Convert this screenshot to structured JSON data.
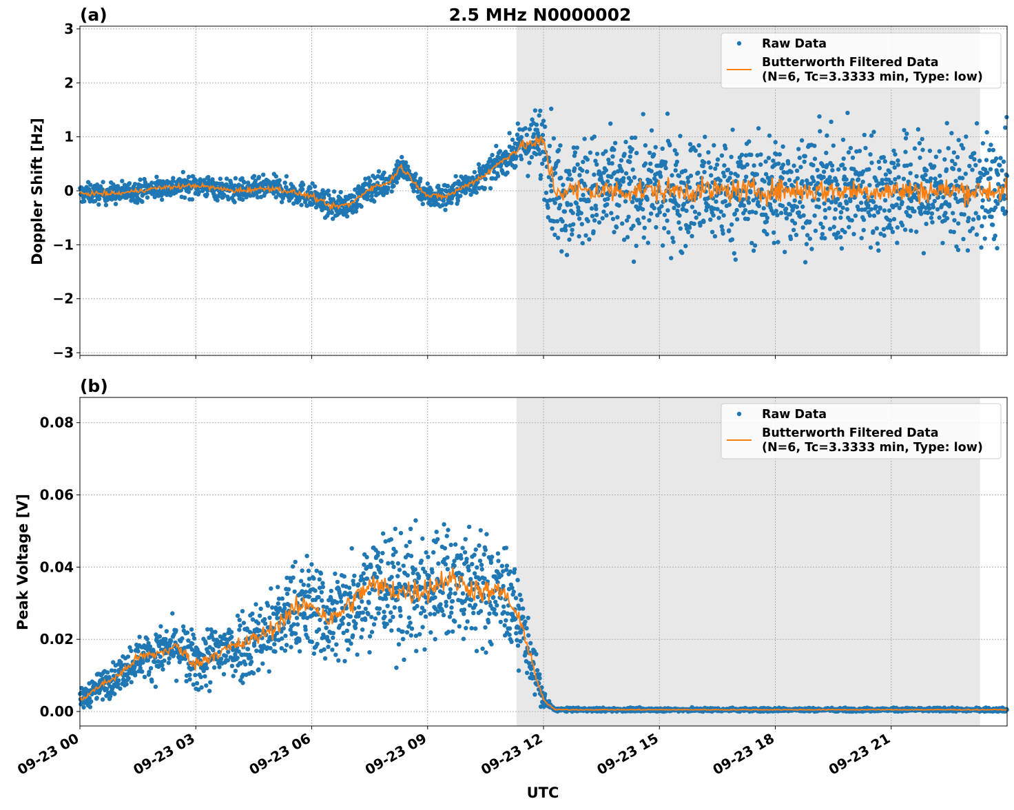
{
  "title": "2.5 MHz N0000002",
  "xlabel": "UTC",
  "x_tick_labels": [
    "09-23 00",
    "09-23 03",
    "09-23 06",
    "09-23 09",
    "09-23 12",
    "09-23 15",
    "09-23 18",
    "09-23 21"
  ],
  "legend": {
    "raw": "Raw Data",
    "filtered_line1": "Butterworth Filtered Data",
    "filtered_line2": "(N=6, Tc=3.3333 min, Type: low)"
  },
  "colors": {
    "raw": "#1f77b4",
    "filtered": "#ff7f0e",
    "shade": "#e8e8e8",
    "grid": "#b0b0b0"
  },
  "chart_data": [
    {
      "type": "scatter",
      "panel_label": "(a)",
      "ylabel": "Doppler Shift [Hz]",
      "ylim": [
        -3.05,
        3.05
      ],
      "y_ticks": [
        -3,
        -2,
        -1,
        0,
        1,
        2,
        3
      ],
      "y_tick_labels": [
        "−3",
        "−2",
        "−1",
        "0",
        "1",
        "2",
        "3"
      ],
      "xlim_hours": [
        0,
        24
      ],
      "x_ticks_hours": [
        0,
        3,
        6,
        9,
        12,
        15,
        18,
        21
      ],
      "shaded_region_hours": [
        11.3,
        23.3
      ],
      "grid": true,
      "legend_position": "top-right",
      "series": [
        {
          "name": "Raw Data",
          "style": "dots",
          "center_hours": [
            0,
            1,
            2,
            3,
            4,
            5,
            6,
            6.5,
            7,
            7.5,
            8,
            8.3,
            9,
            9.5,
            10,
            10.5,
            11,
            11.5,
            12,
            12.3,
            15,
            18,
            21,
            24
          ],
          "center_values": [
            -0.05,
            -0.05,
            0.05,
            0.1,
            0.0,
            0.05,
            -0.1,
            -0.3,
            -0.25,
            0.05,
            0.15,
            0.45,
            -0.1,
            -0.1,
            0.1,
            0.3,
            0.6,
            0.85,
            0.9,
            0.0,
            0.0,
            0.0,
            0.0,
            0.0
          ],
          "spread_hours": [
            0,
            11,
            11.7,
            12.2,
            24
          ],
          "spread_values": [
            0.18,
            0.25,
            0.5,
            1.0,
            1.0
          ]
        },
        {
          "name": "Butterworth Filtered Data (N=6, Tc=3.3333 min, Type: low)",
          "style": "line",
          "x_hours": [
            0,
            1,
            2,
            3,
            4,
            5,
            6,
            6.5,
            7,
            7.5,
            8,
            8.3,
            9,
            9.5,
            10,
            10.5,
            11,
            11.5,
            12,
            12.3,
            15,
            18,
            21,
            24
          ],
          "y": [
            -0.05,
            -0.05,
            0.05,
            0.1,
            0.0,
            0.05,
            -0.1,
            -0.3,
            -0.25,
            0.05,
            0.15,
            0.45,
            -0.1,
            -0.1,
            0.1,
            0.3,
            0.6,
            0.85,
            0.9,
            0.0,
            0.0,
            0.0,
            0.0,
            0.0
          ]
        }
      ]
    },
    {
      "type": "scatter",
      "panel_label": "(b)",
      "ylabel": "Peak Voltage [V]",
      "ylim": [
        -0.004,
        0.087
      ],
      "y_ticks": [
        0.0,
        0.02,
        0.04,
        0.06,
        0.08
      ],
      "y_tick_labels": [
        "0.00",
        "0.02",
        "0.04",
        "0.06",
        "0.08"
      ],
      "xlim_hours": [
        0,
        24
      ],
      "x_ticks_hours": [
        0,
        3,
        6,
        9,
        12,
        15,
        18,
        21
      ],
      "shaded_region_hours": [
        11.3,
        23.3
      ],
      "grid": true,
      "legend_position": "top-right",
      "series": [
        {
          "name": "Raw Data",
          "style": "dots",
          "center_hours": [
            0,
            0.5,
            1,
            1.5,
            2,
            2.5,
            3,
            3.5,
            4,
            4.5,
            5,
            5.5,
            6,
            6.5,
            7,
            7.5,
            8,
            8.5,
            9,
            9.5,
            10,
            10.5,
            11,
            11.5,
            11.8,
            12.0,
            12.3,
            24
          ],
          "center_values": [
            0.003,
            0.007,
            0.01,
            0.015,
            0.016,
            0.018,
            0.013,
            0.016,
            0.018,
            0.02,
            0.023,
            0.028,
            0.03,
            0.025,
            0.03,
            0.035,
            0.034,
            0.033,
            0.034,
            0.037,
            0.035,
            0.033,
            0.033,
            0.022,
            0.01,
            0.003,
            0.0005,
            0.0005
          ],
          "spread_hours": [
            0,
            3,
            6,
            9,
            11,
            11.6,
            12.2,
            24
          ],
          "spread_values": [
            0.003,
            0.008,
            0.013,
            0.017,
            0.014,
            0.008,
            0.0005,
            0.0005
          ]
        },
        {
          "name": "Butterworth Filtered Data (N=6, Tc=3.3333 min, Type: low)",
          "style": "line",
          "x_hours": [
            0,
            0.5,
            1,
            1.5,
            2,
            2.5,
            3,
            3.5,
            4,
            4.5,
            5,
            5.5,
            6,
            6.5,
            7,
            7.5,
            8,
            8.5,
            9,
            9.5,
            10,
            10.5,
            11,
            11.5,
            11.8,
            12.0,
            12.3,
            24
          ],
          "y": [
            0.003,
            0.007,
            0.01,
            0.015,
            0.016,
            0.018,
            0.013,
            0.016,
            0.018,
            0.02,
            0.023,
            0.028,
            0.03,
            0.025,
            0.03,
            0.035,
            0.034,
            0.033,
            0.034,
            0.037,
            0.035,
            0.033,
            0.033,
            0.022,
            0.01,
            0.003,
            0.0005,
            0.0005
          ]
        }
      ]
    }
  ]
}
